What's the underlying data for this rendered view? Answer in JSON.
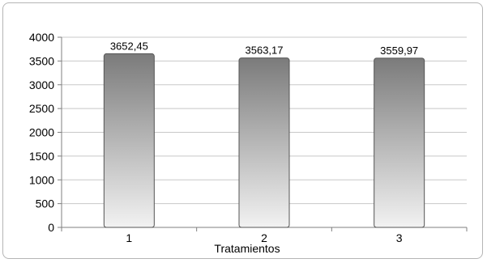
{
  "chart_data": {
    "type": "bar",
    "categories": [
      "1",
      "2",
      "3"
    ],
    "values": [
      3652.45,
      3563.17,
      3559.97
    ],
    "data_labels": [
      "3652,45",
      "3563,17",
      "3559,97"
    ],
    "xlabel": "Tratamientos",
    "ylabel": "",
    "ylim": [
      0,
      4000
    ],
    "yticks": [
      0,
      500,
      1000,
      1500,
      2000,
      2500,
      3000,
      3500,
      4000
    ],
    "grid": true,
    "legend": "none",
    "colors": {
      "bar_top": "#7b7b7b",
      "bar_bottom": "#f2f2f2",
      "bar_edge": "#555555",
      "grid": "#c8c8c8",
      "axis": "#7f7f7f"
    }
  }
}
